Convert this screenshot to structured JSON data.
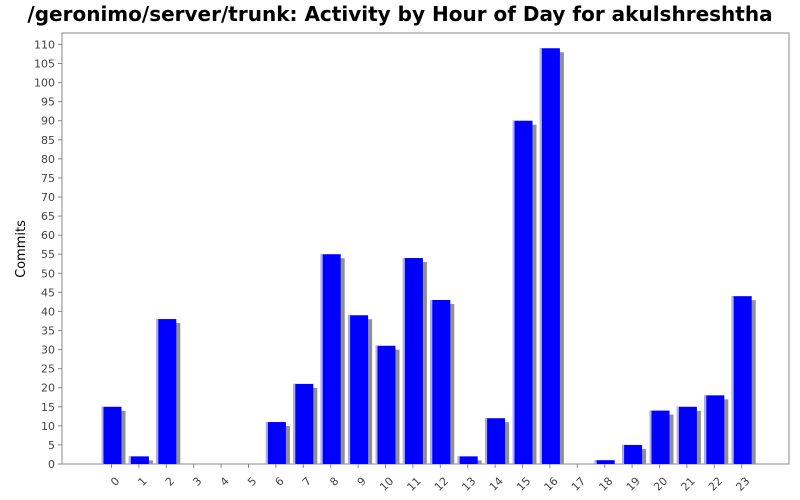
{
  "chart_data": {
    "type": "bar",
    "title": "/geronimo/server/trunk: Activity by Hour of Day for akulshreshtha",
    "xlabel": "",
    "ylabel": "Commits",
    "categories": [
      "0",
      "1",
      "2",
      "3",
      "4",
      "5",
      "6",
      "7",
      "8",
      "9",
      "10",
      "11",
      "12",
      "13",
      "14",
      "15",
      "16",
      "17",
      "18",
      "19",
      "20",
      "21",
      "22",
      "23"
    ],
    "values": [
      15,
      2,
      38,
      0,
      0,
      0,
      11,
      21,
      55,
      39,
      31,
      54,
      43,
      2,
      12,
      90,
      109,
      0,
      1,
      5,
      14,
      15,
      18,
      44
    ],
    "ylim": [
      0,
      113
    ],
    "yticks": [
      0,
      5,
      10,
      15,
      20,
      25,
      30,
      35,
      40,
      45,
      50,
      55,
      60,
      65,
      70,
      75,
      80,
      85,
      90,
      95,
      100,
      105,
      110
    ],
    "grid": false,
    "colors": {
      "bar": "#0000ff",
      "bar_highlight": "#b0b0ff",
      "bar_shadow": "#909090",
      "axis": "#888888",
      "plot_border": "#888888"
    }
  }
}
